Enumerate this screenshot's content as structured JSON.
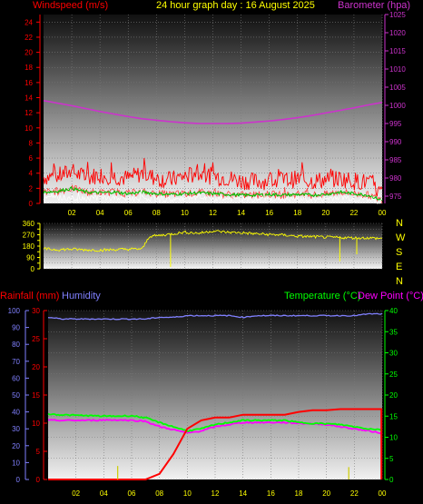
{
  "header": {
    "windspeed_label": "Windspeed (m/s)",
    "title": "24 hour graph day : 16 August 2025",
    "barometer_label": "Barometer (hpa)"
  },
  "bottom_header": {
    "rainfall_label": "Rainfall (mm)",
    "humidity_label": "Humidity",
    "temperature_label": "Temperature (°C)",
    "dewpoint_label": "Dew Point (°C)"
  },
  "compass_letters": [
    "N",
    "W",
    "S",
    "E",
    "N"
  ],
  "colors": {
    "windspeed": "#ff0000",
    "gust": "#ff0000",
    "wind_avg": "#00c000",
    "wind_light": "#ffffff",
    "barometer": "#cc33cc",
    "direction": "#ffff00",
    "rainfall": "#ff0000",
    "humidity": "#8080ff",
    "temperature": "#00ff00",
    "dewpoint": "#ff00ff",
    "rain_rate": "#cccc00"
  },
  "chart_data": [
    {
      "type": "line",
      "name": "wind-barometer",
      "x_ticks": [
        "02",
        "04",
        "06",
        "08",
        "10",
        "12",
        "14",
        "16",
        "18",
        "20",
        "22",
        "00"
      ],
      "ylabel_left": "Windspeed (m/s)",
      "ylim_left": [
        0,
        25
      ],
      "yticks_left": [
        0,
        2,
        4,
        6,
        8,
        10,
        12,
        14,
        16,
        18,
        20,
        22,
        24
      ],
      "ylabel_right": "Barometer (hpa)",
      "ylim_right": [
        973,
        1025
      ],
      "yticks_right": [
        975,
        980,
        985,
        990,
        995,
        1000,
        1005,
        1010,
        1015,
        1020,
        1025
      ],
      "x_hours": [
        0,
        1,
        2,
        3,
        4,
        5,
        6,
        7,
        8,
        9,
        10,
        11,
        12,
        13,
        14,
        15,
        16,
        17,
        18,
        19,
        20,
        21,
        22,
        23,
        24
      ],
      "series": [
        {
          "role": "gust",
          "axis": "left",
          "values": [
            3.5,
            3.6,
            4.2,
            3.4,
            3.8,
            3.6,
            3.3,
            4.0,
            3.3,
            3.1,
            3.6,
            3.9,
            3.6,
            3.4,
            3.0,
            2.9,
            3.0,
            3.1,
            3.2,
            3.0,
            3.1,
            3.3,
            3.0,
            2.8,
            1.2
          ]
        },
        {
          "role": "average",
          "axis": "left",
          "values": [
            1.5,
            1.6,
            2.0,
            1.5,
            1.4,
            1.5,
            1.3,
            1.5,
            1.3,
            1.2,
            1.3,
            1.4,
            1.3,
            1.2,
            1.1,
            1.1,
            1.2,
            1.1,
            1.2,
            1.1,
            1.2,
            1.5,
            1.3,
            1.1,
            0.4
          ]
        },
        {
          "role": "light",
          "axis": "left",
          "values": [
            0.6,
            0.8,
            0.7,
            0.7,
            0.8,
            0.7,
            0.6,
            0.7,
            0.6,
            0.5,
            0.6,
            0.7,
            0.6,
            0.6,
            0.5,
            0.5,
            0.6,
            0.5,
            0.6,
            0.5,
            0.6,
            0.9,
            0.6,
            0.5,
            0.1
          ]
        },
        {
          "role": "barometer",
          "axis": "right",
          "values": [
            1001.3,
            1000.6,
            999.9,
            999.1,
            998.3,
            997.6,
            996.9,
            996.3,
            995.9,
            995.5,
            995.2,
            995.0,
            995.0,
            995.0,
            995.1,
            995.4,
            995.7,
            996.1,
            996.6,
            997.2,
            997.9,
            998.6,
            999.3,
            1000.1,
            1000.8
          ]
        }
      ]
    },
    {
      "type": "line",
      "name": "wind-direction",
      "ylim": [
        0,
        360
      ],
      "yticks": [
        0,
        45,
        90,
        135,
        180,
        225,
        270,
        315,
        360
      ],
      "ytick_labels": [
        "0",
        "90",
        "180",
        "270",
        "360"
      ],
      "x_hours": [
        0,
        1,
        2,
        3,
        4,
        5,
        6,
        7,
        7.5,
        8,
        9,
        10,
        11,
        12,
        13,
        14,
        15,
        16,
        17,
        18,
        19,
        20,
        21,
        22,
        23,
        24
      ],
      "values": [
        158,
        152,
        156,
        150,
        148,
        152,
        155,
        158,
        258,
        262,
        275,
        290,
        282,
        300,
        290,
        286,
        278,
        272,
        268,
        258,
        255,
        250,
        248,
        245,
        245,
        240
      ],
      "dips_hours": [
        9.0,
        21.0,
        22.2
      ],
      "dips_values": [
        15,
        60,
        115
      ]
    },
    {
      "type": "line",
      "name": "rain-humidity-temperature",
      "x_ticks": [
        "02",
        "04",
        "06",
        "08",
        "10",
        "12",
        "14",
        "16",
        "18",
        "20",
        "22",
        "00"
      ],
      "ylabel_left_outer": "Humidity",
      "ylim_left_outer": [
        0,
        100
      ],
      "yticks_left_outer": [
        0,
        10,
        20,
        30,
        40,
        50,
        60,
        70,
        80,
        90,
        100
      ],
      "ylabel_left_inner": "Rainfall (mm)",
      "ylim_left_inner": [
        0,
        30
      ],
      "yticks_left_inner": [
        0,
        5,
        10,
        15,
        20,
        25,
        30
      ],
      "ylabel_right": "Temperature (°C)",
      "ylim_right": [
        0,
        40
      ],
      "yticks_right": [
        0,
        5,
        10,
        15,
        20,
        25,
        30,
        35,
        40
      ],
      "x_hours": [
        0,
        1,
        2,
        3,
        4,
        5,
        6,
        7,
        8,
        9,
        10,
        11,
        12,
        13,
        14,
        15,
        16,
        17,
        18,
        19,
        20,
        21,
        22,
        23,
        24
      ],
      "series": [
        {
          "role": "humidity",
          "axis": "left_outer",
          "values": [
            96,
            95,
            95,
            95,
            95,
            95,
            95,
            95,
            96,
            96,
            97,
            97,
            97,
            97,
            96,
            97,
            97,
            97,
            97,
            97,
            97,
            97,
            97,
            98,
            98
          ]
        },
        {
          "role": "rainfall",
          "axis": "left_inner",
          "values": [
            0,
            0,
            0,
            0,
            0,
            0,
            0,
            0,
            1.0,
            4.5,
            9.0,
            10.5,
            11.0,
            11.0,
            11.5,
            11.5,
            11.5,
            11.5,
            12.0,
            12.3,
            12.3,
            12.5,
            12.5,
            12.5,
            0
          ]
        },
        {
          "role": "temperature",
          "axis": "right",
          "values": [
            15.5,
            15.3,
            15.2,
            15.1,
            15.0,
            15.0,
            15.1,
            14.6,
            13.5,
            12.5,
            11.5,
            12.0,
            13.0,
            13.5,
            14.0,
            14.0,
            14.0,
            14.0,
            13.5,
            13.3,
            13.2,
            13.0,
            12.5,
            12.0,
            11.8
          ]
        },
        {
          "role": "dewpoint",
          "axis": "right",
          "values": [
            14.0,
            14.0,
            14.0,
            14.0,
            14.1,
            14.1,
            14.0,
            13.8,
            12.5,
            11.8,
            11.0,
            11.5,
            12.5,
            13.0,
            13.5,
            13.5,
            13.5,
            13.5,
            13.3,
            13.2,
            13.0,
            12.5,
            12.0,
            11.5,
            11.0
          ]
        },
        {
          "role": "rain_rate",
          "axis": "left_inner",
          "bars_hours": [
            5.0,
            21.6
          ],
          "bars_values": [
            2.4,
            2.2
          ]
        }
      ]
    }
  ]
}
